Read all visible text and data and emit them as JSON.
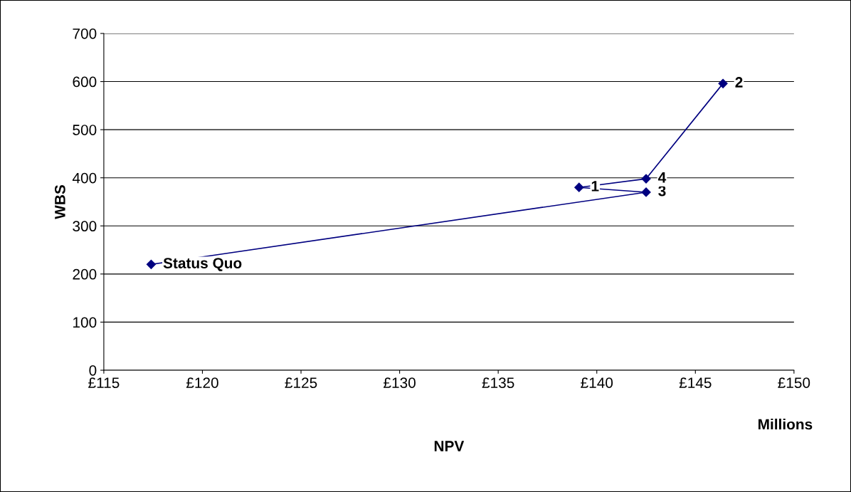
{
  "chart_data": {
    "type": "line",
    "xlabel": "NPV",
    "ylabel": "WBS",
    "x": [
      117.4,
      142.5,
      139.1,
      142.5,
      146.4
    ],
    "series": [
      {
        "color": "#000080",
        "values": [
          220,
          370,
          380,
          398,
          596
        ]
      }
    ],
    "marker": "diamond",
    "line_style": "solid",
    "grid": "y",
    "legend": false,
    "xlim": [
      115,
      150
    ],
    "xticks": [
      {
        "value": 115,
        "label": "£115"
      },
      {
        "value": 120,
        "label": "£120"
      },
      {
        "value": 125,
        "label": "£125"
      },
      {
        "value": 130,
        "label": "£130"
      },
      {
        "value": 135,
        "label": "£135"
      },
      {
        "value": 140,
        "label": "£140"
      },
      {
        "value": 145,
        "label": "£145"
      },
      {
        "value": 150,
        "label": "£150"
      }
    ],
    "ylim": [
      0,
      700
    ],
    "yticks": [
      0,
      100,
      200,
      300,
      400,
      500,
      600,
      700
    ],
    "annotations": [
      {
        "text": "Status Quo",
        "x": 117.4,
        "y": 220
      },
      {
        "text": "3",
        "x": 142.5,
        "y": 370
      },
      {
        "text": "1",
        "x": 139.1,
        "y": 380
      },
      {
        "text": "4",
        "x": 142.5,
        "y": 398
      },
      {
        "text": "2",
        "x": 146.4,
        "y": 596
      },
      "Millions"
    ]
  }
}
